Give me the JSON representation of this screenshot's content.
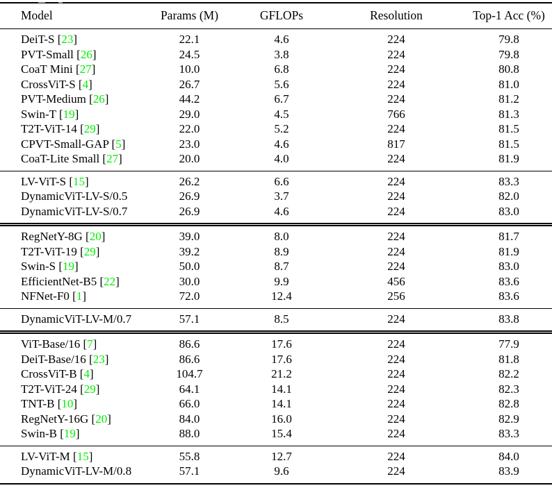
{
  "colors": {
    "citation": "#00ee00",
    "rule": "#000000",
    "text": "#000000",
    "background": "#ffffff"
  },
  "table": {
    "columns": [
      "Model",
      "Params (M)",
      "GFLOPs",
      "Resolution",
      "Top-1 Acc (%)"
    ],
    "groups": [
      {
        "separator": "none",
        "rows": [
          {
            "model": "DeiT-S",
            "cite": "23",
            "params": "22.1",
            "gflops": "4.6",
            "resolution": "224",
            "top1": "79.8"
          },
          {
            "model": "PVT-Small",
            "cite": "26",
            "params": "24.5",
            "gflops": "3.8",
            "resolution": "224",
            "top1": "79.8"
          },
          {
            "model": "CoaT Mini",
            "cite": "27",
            "params": "10.0",
            "gflops": "6.8",
            "resolution": "224",
            "top1": "80.8"
          },
          {
            "model": "CrossViT-S",
            "cite": "4",
            "params": "26.7",
            "gflops": "5.6",
            "resolution": "224",
            "top1": "81.0"
          },
          {
            "model": "PVT-Medium",
            "cite": "26",
            "params": "44.2",
            "gflops": "6.7",
            "resolution": "224",
            "top1": "81.2"
          },
          {
            "model": "Swin-T",
            "cite": "19",
            "params": "29.0",
            "gflops": "4.5",
            "resolution": "766",
            "top1": "81.3"
          },
          {
            "model": "T2T-ViT-14",
            "cite": "29",
            "params": "22.0",
            "gflops": "5.2",
            "resolution": "224",
            "top1": "81.5"
          },
          {
            "model": "CPVT-Small-GAP",
            "cite": "5",
            "params": "23.0",
            "gflops": "4.6",
            "resolution": "817",
            "top1": "81.5"
          },
          {
            "model": "CoaT-Lite Small",
            "cite": "27",
            "params": "20.0",
            "gflops": "4.0",
            "resolution": "224",
            "top1": "81.9"
          }
        ]
      },
      {
        "separator": "single",
        "rows": [
          {
            "model": "LV-ViT-S",
            "cite": "15",
            "params": "26.2",
            "gflops": "6.6",
            "resolution": "224",
            "top1": "83.3"
          },
          {
            "model": "DynamicViT-LV-S/0.5",
            "cite": "",
            "params": "26.9",
            "gflops": "3.7",
            "resolution": "224",
            "top1": "82.0"
          },
          {
            "model": "DynamicViT-LV-S/0.7",
            "cite": "",
            "params": "26.9",
            "gflops": "4.6",
            "resolution": "224",
            "top1": "83.0"
          }
        ]
      },
      {
        "separator": "double",
        "rows": [
          {
            "model": "RegNetY-8G",
            "cite": "20",
            "params": "39.0",
            "gflops": "8.0",
            "resolution": "224",
            "top1": "81.7"
          },
          {
            "model": "T2T-ViT-19",
            "cite": "29",
            "params": "39.2",
            "gflops": "8.9",
            "resolution": "224",
            "top1": "81.9"
          },
          {
            "model": "Swin-S",
            "cite": "19",
            "params": "50.0",
            "gflops": "8.7",
            "resolution": "224",
            "top1": "83.0"
          },
          {
            "model": "EfficientNet-B5",
            "cite": "22",
            "params": "30.0",
            "gflops": "9.9",
            "resolution": "456",
            "top1": "83.6"
          },
          {
            "model": "NFNet-F0",
            "cite": "1",
            "params": "72.0",
            "gflops": "12.4",
            "resolution": "256",
            "top1": "83.6"
          }
        ]
      },
      {
        "separator": "single",
        "rows": [
          {
            "model": "DynamicViT-LV-M/0.7",
            "cite": "",
            "params": "57.1",
            "gflops": "8.5",
            "resolution": "224",
            "top1": "83.8"
          }
        ]
      },
      {
        "separator": "double",
        "rows": [
          {
            "model": "ViT-Base/16",
            "cite": "7",
            "params": "86.6",
            "gflops": "17.6",
            "resolution": "224",
            "top1": "77.9"
          },
          {
            "model": "DeiT-Base/16",
            "cite": "23",
            "params": "86.6",
            "gflops": "17.6",
            "resolution": "224",
            "top1": "81.8"
          },
          {
            "model": "CrossViT-B",
            "cite": "4",
            "params": "104.7",
            "gflops": "21.2",
            "resolution": "224",
            "top1": "82.2"
          },
          {
            "model": "T2T-ViT-24",
            "cite": "29",
            "params": "64.1",
            "gflops": "14.1",
            "resolution": "224",
            "top1": "82.3"
          },
          {
            "model": "TNT-B",
            "cite": "10",
            "params": "66.0",
            "gflops": "14.1",
            "resolution": "224",
            "top1": "82.8"
          },
          {
            "model": "RegNetY-16G",
            "cite": "20",
            "params": "84.0",
            "gflops": "16.0",
            "resolution": "224",
            "top1": "82.9"
          },
          {
            "model": "Swin-B",
            "cite": "19",
            "params": "88.0",
            "gflops": "15.4",
            "resolution": "224",
            "top1": "83.3"
          }
        ]
      },
      {
        "separator": "single",
        "rows": [
          {
            "model": "LV-ViT-M",
            "cite": "15",
            "params": "55.8",
            "gflops": "12.7",
            "resolution": "224",
            "top1": "84.0"
          },
          {
            "model": "DynamicViT-LV-M/0.8",
            "cite": "",
            "params": "57.1",
            "gflops": "9.6",
            "resolution": "224",
            "top1": "83.9"
          }
        ]
      }
    ]
  }
}
